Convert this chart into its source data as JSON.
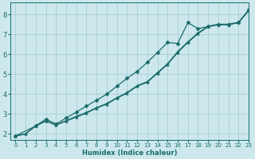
{
  "xlabel": "Humidex (Indice chaleur)",
  "background_color": "#cce8ed",
  "grid_color": "#aacdd5",
  "line_color": "#1a6b6b",
  "xlim": [
    -0.5,
    23
  ],
  "ylim": [
    1.7,
    8.6
  ],
  "xticks": [
    0,
    1,
    2,
    3,
    4,
    5,
    6,
    7,
    8,
    9,
    10,
    11,
    12,
    13,
    14,
    15,
    16,
    17,
    18,
    19,
    20,
    21,
    22,
    23
  ],
  "yticks": [
    2,
    3,
    4,
    5,
    6,
    7,
    8
  ],
  "line1_x": [
    0,
    1,
    2,
    3,
    4,
    5,
    6,
    7,
    8,
    9,
    10,
    11,
    12,
    13,
    14,
    15,
    16,
    17,
    18,
    19,
    20,
    21,
    22,
    23
  ],
  "line1_y": [
    1.9,
    2.0,
    2.4,
    2.65,
    2.45,
    2.65,
    2.85,
    3.05,
    3.3,
    3.5,
    3.8,
    4.05,
    4.4,
    4.6,
    5.05,
    5.5,
    6.1,
    6.6,
    7.05,
    7.4,
    7.5,
    7.5,
    7.6,
    8.2
  ],
  "line2_x": [
    0,
    1,
    2,
    3,
    4,
    5,
    6,
    7,
    8,
    9,
    10,
    11,
    12,
    13,
    14,
    15,
    16,
    17,
    18,
    19,
    20,
    21,
    22,
    23
  ],
  "line2_y": [
    1.9,
    2.0,
    2.42,
    2.65,
    2.45,
    2.67,
    2.88,
    3.08,
    3.32,
    3.53,
    3.82,
    4.08,
    4.43,
    4.63,
    5.08,
    5.53,
    6.14,
    6.63,
    7.08,
    7.42,
    7.52,
    7.52,
    7.62,
    8.22
  ],
  "line3_x": [
    0,
    2,
    3,
    4,
    5,
    6,
    7,
    8,
    9,
    10,
    11,
    12,
    13,
    14,
    15,
    16,
    17,
    18,
    19,
    20,
    21,
    22,
    23
  ],
  "line3_y": [
    1.9,
    2.4,
    2.75,
    2.5,
    2.8,
    3.1,
    3.4,
    3.7,
    4.0,
    4.4,
    4.8,
    5.15,
    5.6,
    6.1,
    6.6,
    6.55,
    7.6,
    7.3,
    7.4,
    7.5,
    7.5,
    7.6,
    8.25
  ]
}
